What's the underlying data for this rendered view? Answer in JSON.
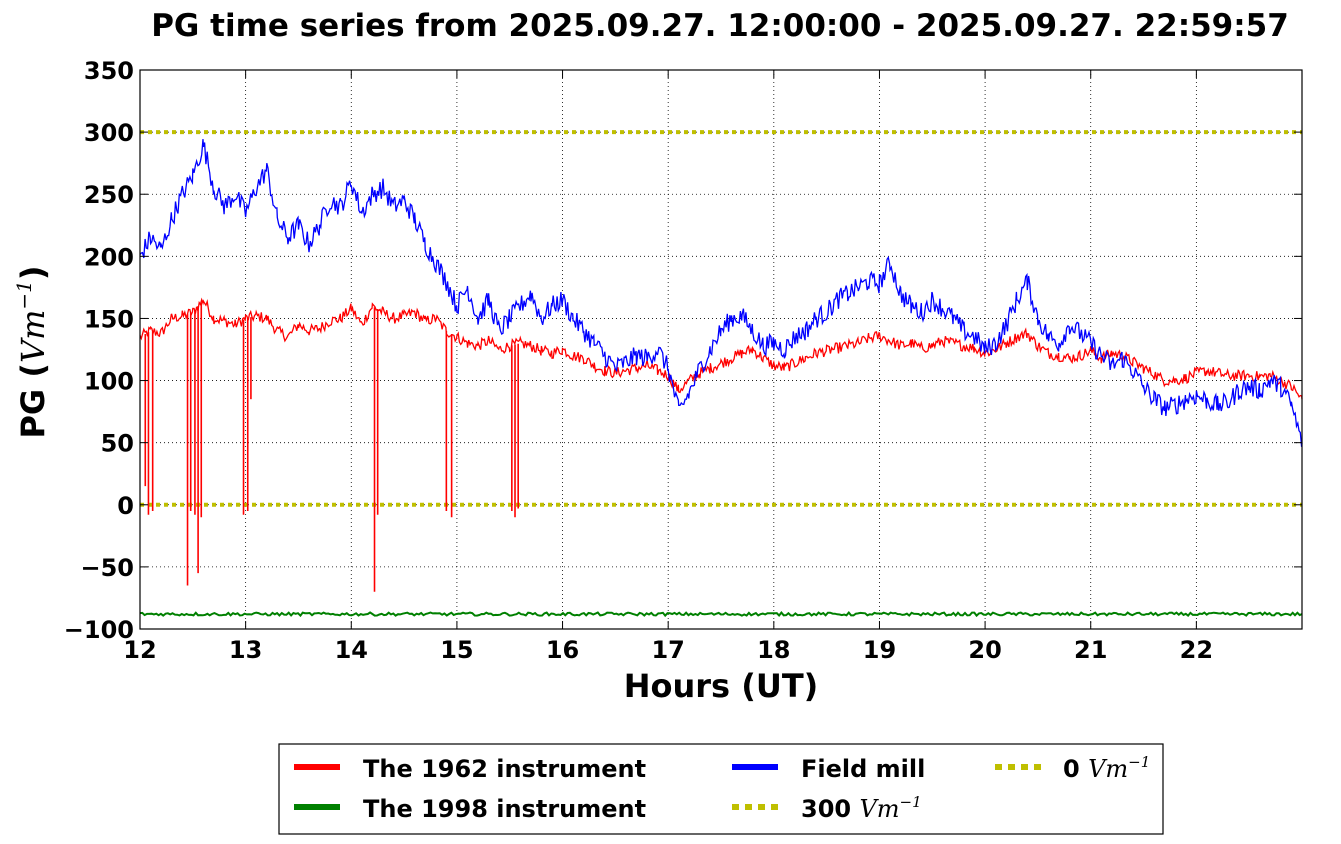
{
  "chart_data": {
    "type": "line",
    "title": "PG time series from 2025.09.27. 12:00:00 - 2025.09.27. 22:59:57",
    "xlabel": "Hours (UT)",
    "ylabel": {
      "prefix": "PG (",
      "unit": "Vm",
      "exp": "−1",
      "suffix": ")"
    },
    "xlim": [
      12,
      23
    ],
    "ylim": [
      -100,
      350
    ],
    "x_ticks": [
      "12",
      "13",
      "14",
      "15",
      "16",
      "17",
      "18",
      "19",
      "20",
      "21",
      "22"
    ],
    "y_ticks": [
      "350",
      "300",
      "250",
      "200",
      "150",
      "100",
      "50",
      "0",
      "−50",
      "−100"
    ],
    "grid": true,
    "legend_position": "bottom, outside plot",
    "legend": [
      {
        "text": "The 1962 instrument",
        "color": "#ff0000",
        "style": "solid"
      },
      {
        "text": "The 1998 instrument",
        "color": "#008000",
        "style": "solid"
      },
      {
        "text": "Field mill",
        "color": "#0000ff",
        "style": "solid"
      },
      {
        "text": "300 ",
        "math": "Vm",
        "exp": "−1",
        "color": "#bfbf00",
        "style": "dotted"
      },
      {
        "text": "0 ",
        "math": "Vm",
        "exp": "−1",
        "color": "#bfbf00",
        "style": "dotted"
      }
    ],
    "series": [
      {
        "name": "The 1962 instrument",
        "color": "#ff0000",
        "x": [
          12.0,
          12.1,
          12.2,
          12.3,
          12.4,
          12.5,
          12.6,
          12.7,
          12.8,
          12.9,
          13.0,
          13.1,
          13.2,
          13.3,
          13.4,
          13.5,
          13.6,
          13.7,
          13.8,
          13.9,
          14.0,
          14.1,
          14.2,
          14.3,
          14.4,
          14.5,
          14.6,
          14.7,
          14.8,
          14.9,
          15.0,
          15.1,
          15.2,
          15.3,
          15.4,
          15.5,
          15.6,
          15.7,
          15.8,
          15.9,
          16.0,
          16.1,
          16.2,
          16.3,
          16.4,
          16.5,
          16.6,
          16.7,
          16.8,
          16.9,
          17.0,
          17.1,
          17.2,
          17.3,
          17.4,
          17.5,
          17.6,
          17.7,
          17.8,
          17.9,
          18.0,
          18.1,
          18.2,
          18.3,
          18.4,
          18.5,
          18.6,
          18.7,
          18.8,
          18.9,
          19.0,
          19.1,
          19.2,
          19.3,
          19.4,
          19.5,
          19.6,
          19.7,
          19.8,
          19.9,
          20.0,
          20.1,
          20.2,
          20.3,
          20.4,
          20.5,
          20.6,
          20.7,
          20.8,
          20.9,
          21.0,
          21.1,
          21.2,
          21.3,
          21.4,
          21.5,
          21.6,
          21.7,
          21.8,
          21.9,
          22.0,
          22.1,
          22.2,
          22.3,
          22.4,
          22.5,
          22.6,
          22.7,
          22.8,
          22.9,
          23.0
        ],
        "y": [
          135,
          140,
          138,
          150,
          152,
          155,
          165,
          150,
          148,
          145,
          150,
          152,
          150,
          140,
          135,
          145,
          140,
          142,
          148,
          150,
          158,
          145,
          160,
          155,
          150,
          152,
          155,
          148,
          150,
          140,
          135,
          130,
          128,
          132,
          125,
          128,
          130,
          128,
          124,
          122,
          125,
          120,
          118,
          112,
          108,
          106,
          108,
          110,
          112,
          108,
          104,
          92,
          100,
          106,
          110,
          114,
          118,
          122,
          125,
          118,
          112,
          110,
          114,
          118,
          122,
          124,
          126,
          128,
          130,
          134,
          136,
          132,
          128,
          130,
          126,
          128,
          132,
          130,
          128,
          126,
          122,
          125,
          130,
          135,
          138,
          128,
          122,
          120,
          118,
          120,
          124,
          118,
          122,
          120,
          115,
          110,
          105,
          100,
          100,
          102,
          106,
          108,
          106,
          104,
          104,
          104,
          103,
          104,
          100,
          95,
          85
        ]
      },
      {
        "name": "Field mill",
        "color": "#0000ff",
        "x": [
          12.0,
          12.1,
          12.2,
          12.3,
          12.4,
          12.5,
          12.6,
          12.7,
          12.8,
          12.9,
          13.0,
          13.1,
          13.2,
          13.3,
          13.4,
          13.5,
          13.6,
          13.7,
          13.8,
          13.9,
          14.0,
          14.1,
          14.2,
          14.3,
          14.4,
          14.5,
          14.6,
          14.7,
          14.8,
          14.9,
          15.0,
          15.1,
          15.2,
          15.3,
          15.4,
          15.5,
          15.6,
          15.7,
          15.8,
          15.9,
          16.0,
          16.1,
          16.2,
          16.3,
          16.4,
          16.5,
          16.6,
          16.7,
          16.8,
          16.9,
          17.0,
          17.1,
          17.2,
          17.3,
          17.4,
          17.5,
          17.6,
          17.7,
          17.8,
          17.9,
          18.0,
          18.1,
          18.2,
          18.3,
          18.4,
          18.5,
          18.6,
          18.7,
          18.8,
          18.9,
          19.0,
          19.1,
          19.2,
          19.3,
          19.4,
          19.5,
          19.6,
          19.7,
          19.8,
          19.9,
          20.0,
          20.1,
          20.2,
          20.3,
          20.4,
          20.5,
          20.6,
          20.7,
          20.8,
          20.9,
          21.0,
          21.1,
          21.2,
          21.3,
          21.4,
          21.5,
          21.6,
          21.7,
          21.8,
          21.9,
          22.0,
          22.1,
          22.2,
          22.3,
          22.4,
          22.5,
          22.6,
          22.7,
          22.8,
          22.9,
          23.0
        ],
        "y": [
          200,
          215,
          205,
          230,
          250,
          265,
          290,
          255,
          240,
          250,
          235,
          255,
          270,
          230,
          215,
          225,
          210,
          225,
          245,
          240,
          260,
          235,
          250,
          255,
          240,
          245,
          230,
          210,
          195,
          180,
          160,
          175,
          150,
          165,
          140,
          150,
          160,
          170,
          150,
          160,
          165,
          150,
          140,
          130,
          120,
          110,
          115,
          120,
          118,
          125,
          110,
          75,
          90,
          110,
          125,
          140,
          150,
          152,
          140,
          128,
          130,
          125,
          135,
          140,
          150,
          155,
          165,
          170,
          175,
          180,
          178,
          195,
          170,
          160,
          155,
          165,
          158,
          150,
          140,
          135,
          125,
          130,
          145,
          165,
          180,
          150,
          135,
          130,
          145,
          138,
          130,
          120,
          112,
          118,
          108,
          95,
          85,
          78,
          80,
          85,
          88,
          84,
          80,
          82,
          92,
          95,
          92,
          100,
          95,
          80,
          50
        ]
      },
      {
        "name": "The 1998 instrument",
        "color": "#008000",
        "x": [
          12,
          23
        ],
        "y": [
          -88,
          -88
        ]
      },
      {
        "name": "300 Vm−1",
        "color": "#bfbf00",
        "dashed": true,
        "x": [
          12,
          23
        ],
        "y": [
          300,
          300
        ]
      },
      {
        "name": "0 Vm−1",
        "color": "#bfbf00",
        "dashed": true,
        "x": [
          12,
          23
        ],
        "y": [
          0,
          0
        ]
      }
    ],
    "dropouts_1962": [
      {
        "x": 12.05,
        "y": 15
      },
      {
        "x": 12.08,
        "y": -8
      },
      {
        "x": 12.12,
        "y": -5
      },
      {
        "x": 12.45,
        "y": -65
      },
      {
        "x": 12.48,
        "y": -5
      },
      {
        "x": 12.52,
        "y": -8
      },
      {
        "x": 12.55,
        "y": -55
      },
      {
        "x": 12.58,
        "y": -10
      },
      {
        "x": 12.98,
        "y": -8
      },
      {
        "x": 13.02,
        "y": -5
      },
      {
        "x": 13.05,
        "y": 85
      },
      {
        "x": 14.22,
        "y": -70
      },
      {
        "x": 14.25,
        "y": -8
      },
      {
        "x": 14.9,
        "y": -5
      },
      {
        "x": 14.95,
        "y": -10
      },
      {
        "x": 15.52,
        "y": -5
      },
      {
        "x": 15.55,
        "y": -10
      },
      {
        "x": 15.58,
        "y": -3
      }
    ]
  }
}
